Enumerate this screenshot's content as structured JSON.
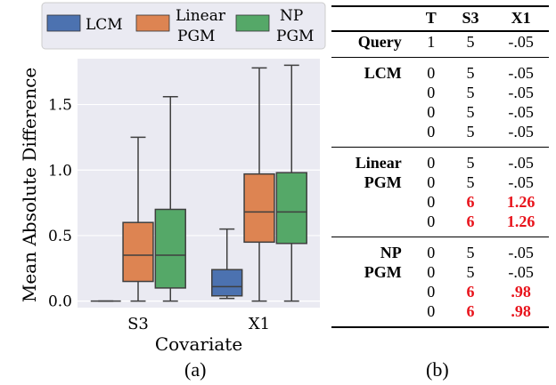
{
  "chart_data": {
    "type": "box",
    "ylabel": "Mean Absolute Difference",
    "xlabel": "Covariate",
    "categories": [
      "S3",
      "X1"
    ],
    "ylim": [
      -0.05,
      1.85
    ],
    "yticks": [
      "0.0",
      "0.5",
      "1.0",
      "1.5"
    ],
    "legend_position": "top",
    "grid": true,
    "series": [
      {
        "name": "LCM",
        "color": "#4c72b0",
        "boxes": [
          {
            "whislo": 0.0,
            "q1": 0.0,
            "med": 0.0,
            "q3": 0.0,
            "whishi": 0.0
          },
          {
            "whislo": 0.02,
            "q1": 0.04,
            "med": 0.11,
            "q3": 0.24,
            "whishi": 0.55
          }
        ]
      },
      {
        "name": "Linear PGM",
        "color": "#dd8452",
        "boxes": [
          {
            "whislo": 0.0,
            "q1": 0.15,
            "med": 0.35,
            "q3": 0.6,
            "whishi": 1.25
          },
          {
            "whislo": 0.0,
            "q1": 0.45,
            "med": 0.68,
            "q3": 0.97,
            "whishi": 1.78
          }
        ]
      },
      {
        "name": "NP PGM",
        "color": "#55a868",
        "boxes": [
          {
            "whislo": 0.0,
            "q1": 0.1,
            "med": 0.35,
            "q3": 0.7,
            "whishi": 1.56
          },
          {
            "whislo": 0.0,
            "q1": 0.44,
            "med": 0.68,
            "q3": 0.98,
            "whishi": 1.8
          }
        ]
      }
    ]
  },
  "legend": [
    {
      "line1": "LCM",
      "line2": ""
    },
    {
      "line1": "Linear",
      "line2": "PGM"
    },
    {
      "line1": "NP",
      "line2": "PGM"
    }
  ],
  "captions": {
    "a": "(a)",
    "b": "(b)"
  },
  "table": {
    "headers": [
      "",
      "T",
      "S3",
      "X1"
    ],
    "groups": [
      {
        "label": [
          "Query"
        ],
        "rows": [
          [
            "1",
            "5",
            "-.05"
          ]
        ],
        "highlight": []
      },
      {
        "label": [
          "LCM"
        ],
        "rows": [
          [
            "0",
            "5",
            "-.05"
          ],
          [
            "0",
            "5",
            "-.05"
          ],
          [
            "0",
            "5",
            "-.05"
          ],
          [
            "0",
            "5",
            "-.05"
          ]
        ],
        "highlight": []
      },
      {
        "label": [
          "Linear",
          "PGM"
        ],
        "rows": [
          [
            "0",
            "5",
            "-.05"
          ],
          [
            "0",
            "5",
            "-.05"
          ],
          [
            "0",
            "6",
            "1.26"
          ],
          [
            "0",
            "6",
            "1.26"
          ]
        ],
        "highlight": [
          [
            2,
            1
          ],
          [
            2,
            2
          ],
          [
            3,
            1
          ],
          [
            3,
            2
          ]
        ]
      },
      {
        "label": [
          "NP",
          "PGM"
        ],
        "rows": [
          [
            "0",
            "5",
            "-.05"
          ],
          [
            "0",
            "5",
            "-.05"
          ],
          [
            "0",
            "6",
            ".98"
          ],
          [
            "0",
            "6",
            ".98"
          ]
        ],
        "highlight": [
          [
            2,
            1
          ],
          [
            2,
            2
          ],
          [
            3,
            1
          ],
          [
            3,
            2
          ]
        ]
      }
    ]
  }
}
